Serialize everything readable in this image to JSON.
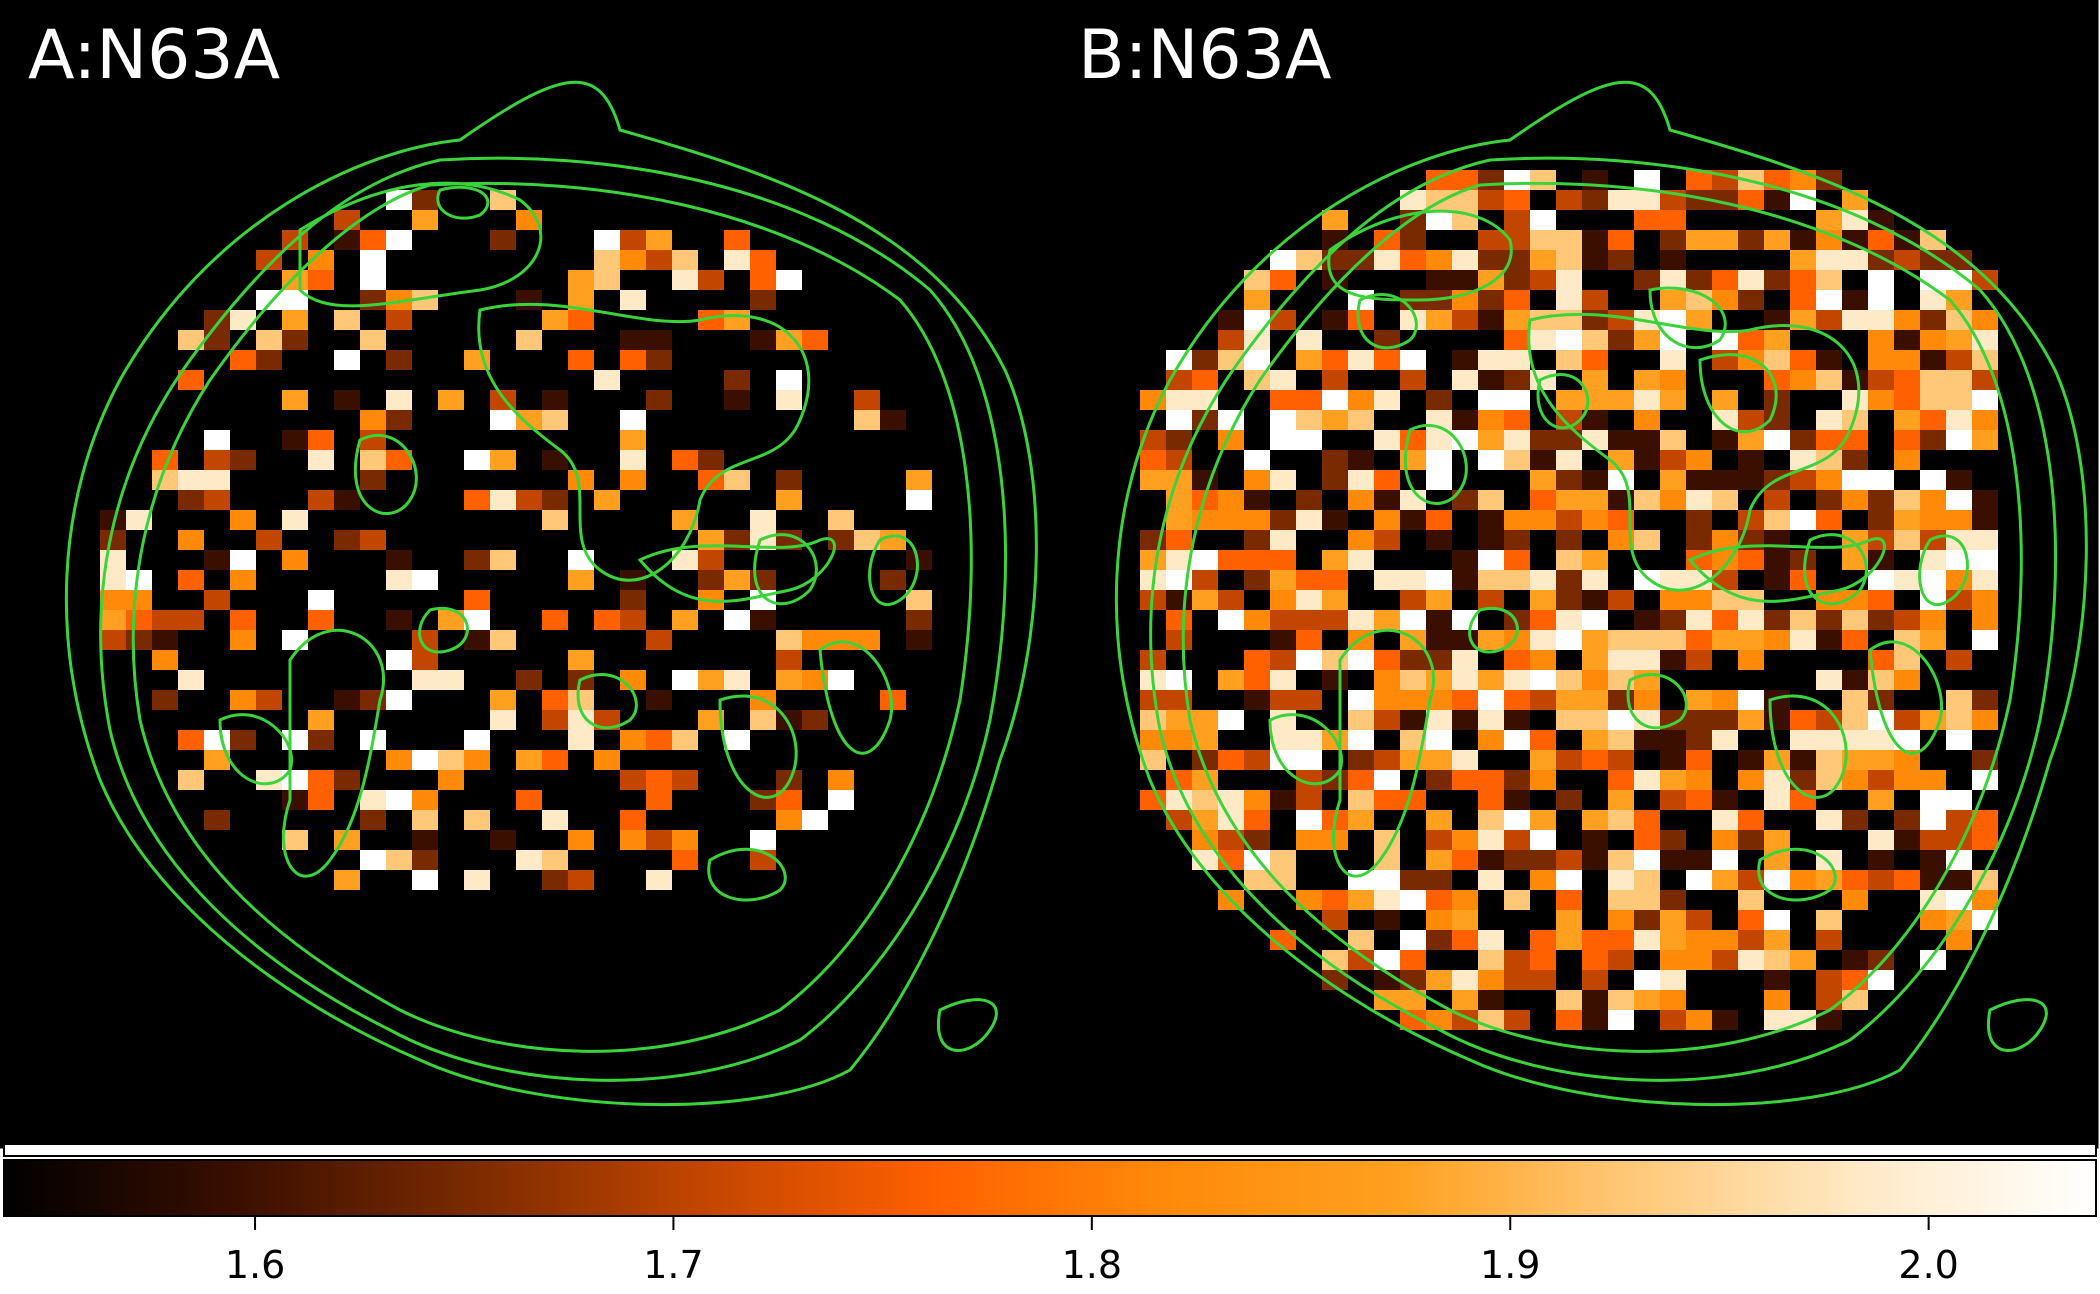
{
  "figure": {
    "panels": [
      {
        "label": "A:N63A"
      },
      {
        "label": "B:N63A"
      }
    ],
    "contour_color": "#3ad43a",
    "background_color": "#000000"
  },
  "colorbar": {
    "range": [
      1.54,
      2.04
    ],
    "ticks": [
      {
        "value": 1.6,
        "label": "1.6"
      },
      {
        "value": 1.7,
        "label": "1.7"
      },
      {
        "value": 1.8,
        "label": "1.8"
      },
      {
        "value": 1.9,
        "label": "1.9"
      },
      {
        "value": 2.0,
        "label": "2.0"
      }
    ],
    "colormap": [
      "#000000",
      "#3a0f00",
      "#7a2a00",
      "#c24600",
      "#ff6000",
      "#ff8a0a",
      "#ffa020",
      "#ffc878",
      "#ffeac8",
      "#ffffff"
    ]
  }
}
